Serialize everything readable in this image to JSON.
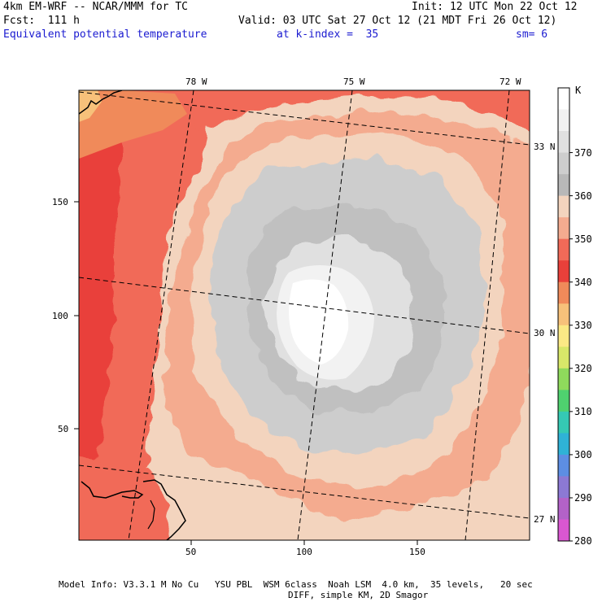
{
  "header": {
    "model_title": "4km EM-WRF -- NCAR/MMM for TC",
    "forecast": "Fcst:  111 h",
    "variable": "Equivalent potential temperature",
    "level": "at k-index =  35",
    "init": "Init: 12 UTC Mon 22 Oct 12",
    "valid": "Valid: 03 UTC Sat 27 Oct 12 (21 MDT Fri 26 Oct 12)",
    "smoothing": "sm= 6"
  },
  "map": {
    "lon_labels": [
      "78 W",
      "75 W",
      "72 W"
    ],
    "lat_labels": [
      "33 N",
      "30 N",
      "27 N"
    ],
    "x_ticks": [
      "50",
      "100",
      "150"
    ],
    "y_ticks": [
      "150",
      "100",
      "50"
    ]
  },
  "colorbar": {
    "unit": "K",
    "labels": [
      "370",
      "360",
      "350",
      "340",
      "330",
      "320",
      "310",
      "300",
      "290",
      "280"
    ],
    "colors": [
      "#ffffff",
      "#f2f2f2",
      "#e0e0e0",
      "#cdcdcd",
      "#b8b8b8",
      "#f3d4be",
      "#f4ab8f",
      "#f16a58",
      "#e9403a",
      "#f08a5a",
      "#f7c17a",
      "#fbe985",
      "#d8e769",
      "#8fda5c",
      "#4fd16f",
      "#35c9b4",
      "#2fb2d6",
      "#5d8ee3",
      "#8c79d4",
      "#b362c8",
      "#d957d1"
    ]
  },
  "footer": {
    "line1": "Model Info: V3.3.1 M No Cu   YSU PBL  WSM 6class  Noah LSM  4.0 km,  35 levels,   20 sec",
    "line2": "DIFF, simple KM, 2D Smagor"
  }
}
